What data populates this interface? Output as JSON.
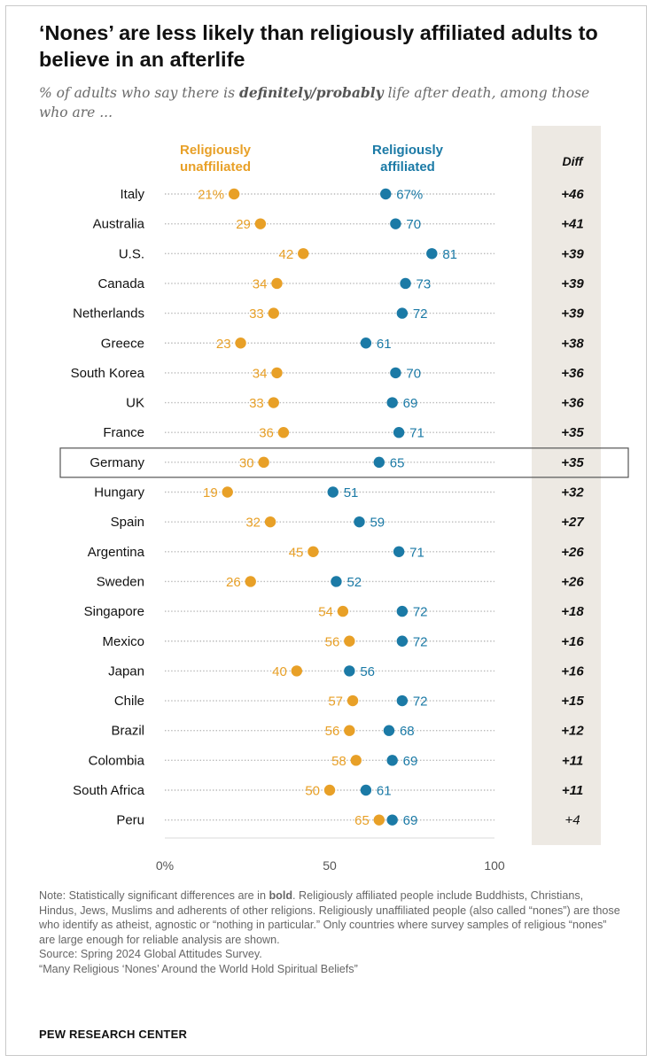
{
  "title": "‘Nones’ are less likely than religiously affiliated adults to believe in an afterlife",
  "subtitle": {
    "pre": "% of adults who say there is ",
    "bold": "definitely/probably",
    "post": " life after death, among those who are ..."
  },
  "colors": {
    "unaffiliated": "#E8A027",
    "affiliated": "#1B7AA6",
    "diff_panel": "#EDE9E3",
    "highlight_box": "#555555"
  },
  "notes": {
    "note_pre": "Note: Statistically significant differences are in ",
    "note_bold": "bold",
    "note_post": ". Religiously affiliated people include Buddhists, Christians, Hindus, Jews, Muslims and adherents of other religions. Religiously unaffiliated people (also called “nones”) are those who identify as atheist, agnostic or “nothing in particular.” Only countries where survey samples of religious “nones” are large enough for reliable analysis are shown.",
    "source": "Source: Spring 2024 Global Attitudes Survey.",
    "report": "“Many Religious ‘Nones’ Around the World Hold Spiritual Beliefs”"
  },
  "brand": "PEW RESEARCH CENTER",
  "chart_data": {
    "type": "dot",
    "series": [
      {
        "name": "Religiously unaffiliated",
        "color": "#E8A027"
      },
      {
        "name": "Religiously affiliated",
        "color": "#1B7AA6"
      }
    ],
    "diff_label": "Diff",
    "xlim": [
      0,
      100
    ],
    "x_ticks": [
      "0%",
      "50",
      "100"
    ],
    "highlighted": "Germany",
    "rows": [
      {
        "country": "Italy",
        "unaffiliated": 21,
        "affiliated": 67,
        "unaff_label": "21%",
        "aff_label": "67%",
        "diff": "+46",
        "significant": true
      },
      {
        "country": "Australia",
        "unaffiliated": 29,
        "affiliated": 70,
        "unaff_label": "29",
        "aff_label": "70",
        "diff": "+41",
        "significant": true
      },
      {
        "country": "U.S.",
        "unaffiliated": 42,
        "affiliated": 81,
        "unaff_label": "42",
        "aff_label": "81",
        "diff": "+39",
        "significant": true
      },
      {
        "country": "Canada",
        "unaffiliated": 34,
        "affiliated": 73,
        "unaff_label": "34",
        "aff_label": "73",
        "diff": "+39",
        "significant": true
      },
      {
        "country": "Netherlands",
        "unaffiliated": 33,
        "affiliated": 72,
        "unaff_label": "33",
        "aff_label": "72",
        "diff": "+39",
        "significant": true
      },
      {
        "country": "Greece",
        "unaffiliated": 23,
        "affiliated": 61,
        "unaff_label": "23",
        "aff_label": "61",
        "diff": "+38",
        "significant": true
      },
      {
        "country": "South Korea",
        "unaffiliated": 34,
        "affiliated": 70,
        "unaff_label": "34",
        "aff_label": "70",
        "diff": "+36",
        "significant": true
      },
      {
        "country": "UK",
        "unaffiliated": 33,
        "affiliated": 69,
        "unaff_label": "33",
        "aff_label": "69",
        "diff": "+36",
        "significant": true
      },
      {
        "country": "France",
        "unaffiliated": 36,
        "affiliated": 71,
        "unaff_label": "36",
        "aff_label": "71",
        "diff": "+35",
        "significant": true
      },
      {
        "country": "Germany",
        "unaffiliated": 30,
        "affiliated": 65,
        "unaff_label": "30",
        "aff_label": "65",
        "diff": "+35",
        "significant": true
      },
      {
        "country": "Hungary",
        "unaffiliated": 19,
        "affiliated": 51,
        "unaff_label": "19",
        "aff_label": "51",
        "diff": "+32",
        "significant": true
      },
      {
        "country": "Spain",
        "unaffiliated": 32,
        "affiliated": 59,
        "unaff_label": "32",
        "aff_label": "59",
        "diff": "+27",
        "significant": true
      },
      {
        "country": "Argentina",
        "unaffiliated": 45,
        "affiliated": 71,
        "unaff_label": "45",
        "aff_label": "71",
        "diff": "+26",
        "significant": true
      },
      {
        "country": "Sweden",
        "unaffiliated": 26,
        "affiliated": 52,
        "unaff_label": "26",
        "aff_label": "52",
        "diff": "+26",
        "significant": true
      },
      {
        "country": "Singapore",
        "unaffiliated": 54,
        "affiliated": 72,
        "unaff_label": "54",
        "aff_label": "72",
        "diff": "+18",
        "significant": true
      },
      {
        "country": "Mexico",
        "unaffiliated": 56,
        "affiliated": 72,
        "unaff_label": "56",
        "aff_label": "72",
        "diff": "+16",
        "significant": true
      },
      {
        "country": "Japan",
        "unaffiliated": 40,
        "affiliated": 56,
        "unaff_label": "40",
        "aff_label": "56",
        "diff": "+16",
        "significant": true
      },
      {
        "country": "Chile",
        "unaffiliated": 57,
        "affiliated": 72,
        "unaff_label": "57",
        "aff_label": "72",
        "diff": "+15",
        "significant": true
      },
      {
        "country": "Brazil",
        "unaffiliated": 56,
        "affiliated": 68,
        "unaff_label": "56",
        "aff_label": "68",
        "diff": "+12",
        "significant": true
      },
      {
        "country": "Colombia",
        "unaffiliated": 58,
        "affiliated": 69,
        "unaff_label": "58",
        "aff_label": "69",
        "diff": "+11",
        "significant": true
      },
      {
        "country": "South Africa",
        "unaffiliated": 50,
        "affiliated": 61,
        "unaff_label": "50",
        "aff_label": "61",
        "diff": "+11",
        "significant": true
      },
      {
        "country": "Peru",
        "unaffiliated": 65,
        "affiliated": 69,
        "unaff_label": "65",
        "aff_label": "69",
        "diff": "+4",
        "significant": false
      }
    ]
  }
}
